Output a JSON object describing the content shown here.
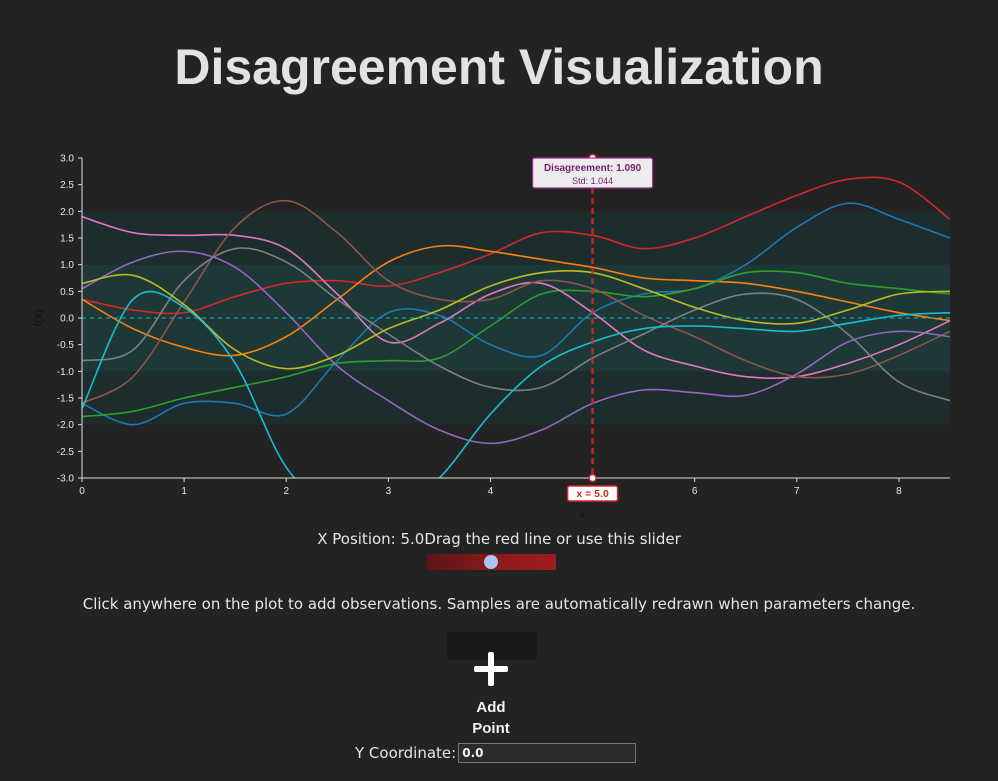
{
  "page": {
    "title": "Disagreement Visualization"
  },
  "controls": {
    "x_position_label": "X Position: 5.0",
    "slider_hint": "Drag the red line or use this slider",
    "slider_value": 5.0,
    "slider_min": 0,
    "slider_max": 8.5,
    "instructions": "Click anywhere on the plot to add observations. Samples are automatically redrawn when parameters change.",
    "add_button_label": "Add Point",
    "y_label": "Y Coordinate:",
    "y_value": "0.0"
  },
  "colors": {
    "accent": "#d62728",
    "tooltip_text": "#7a1e73",
    "band": "#1f3b3b",
    "slider_thumb": "#a9c6ee"
  },
  "chart_data": {
    "type": "line",
    "xlabel": "x",
    "ylabel": "f(x)",
    "xlim": [
      0,
      8.5
    ],
    "ylim": [
      -3,
      3
    ],
    "x_ticks": [
      "0",
      "1",
      "2",
      "3",
      "4",
      "5",
      "6",
      "7",
      "8"
    ],
    "y_ticks": [
      "3.0",
      "2.5",
      "2.0",
      "1.5",
      "1.0",
      "0.5",
      "0.0",
      "-0.5",
      "-1.0",
      "-1.5",
      "-2.0",
      "-2.5",
      "-3.0"
    ],
    "bands": [
      {
        "from": -2,
        "to": 2
      },
      {
        "from": -1,
        "to": 1
      }
    ],
    "mean_line": 0,
    "vertical_marker": {
      "x": 5.0,
      "label": "x = 5.0"
    },
    "tooltip": {
      "title": "Disagreement: 1.090",
      "subtitle": "Std: 1.044"
    },
    "series": [
      {
        "color": "#d62728",
        "x": [
          0,
          0.5,
          1,
          1.5,
          2,
          2.5,
          3,
          3.5,
          4,
          4.5,
          5,
          5.5,
          6,
          6.5,
          7,
          7.5,
          8,
          8.5
        ],
        "y": [
          0.35,
          0.15,
          0.1,
          0.4,
          0.65,
          0.7,
          0.6,
          0.85,
          1.2,
          1.6,
          1.55,
          1.3,
          1.5,
          1.9,
          2.3,
          2.6,
          2.55,
          1.85
        ]
      },
      {
        "color": "#1f77b4",
        "x": [
          0,
          0.5,
          1,
          1.5,
          2,
          2.5,
          3,
          3.5,
          4,
          4.5,
          5,
          5.5,
          6,
          6.5,
          7,
          7.5,
          8,
          8.5
        ],
        "y": [
          -1.6,
          -2.0,
          -1.6,
          -1.6,
          -1.8,
          -0.8,
          0.1,
          0.05,
          -0.5,
          -0.7,
          0.1,
          0.45,
          0.55,
          1.0,
          1.7,
          2.15,
          1.85,
          1.5
        ]
      },
      {
        "color": "#ff7f0e",
        "x": [
          0,
          0.5,
          1,
          1.5,
          2,
          2.5,
          3,
          3.5,
          4,
          4.5,
          5,
          5.5,
          6,
          6.5,
          7,
          7.5,
          8,
          8.5
        ],
        "y": [
          0.35,
          -0.2,
          -0.55,
          -0.7,
          -0.35,
          0.35,
          1.05,
          1.35,
          1.25,
          1.1,
          0.95,
          0.75,
          0.7,
          0.65,
          0.5,
          0.3,
          0.1,
          -0.05
        ]
      },
      {
        "color": "#2ca02c",
        "x": [
          0,
          0.5,
          1,
          1.5,
          2,
          2.5,
          3,
          3.5,
          4,
          4.5,
          5,
          5.5,
          6,
          6.5,
          7,
          7.5,
          8,
          8.5
        ],
        "y": [
          -1.85,
          -1.75,
          -1.5,
          -1.3,
          -1.1,
          -0.85,
          -0.8,
          -0.75,
          -0.15,
          0.45,
          0.5,
          0.4,
          0.55,
          0.85,
          0.85,
          0.65,
          0.55,
          0.45
        ]
      },
      {
        "color": "#e377c2",
        "x": [
          0,
          0.5,
          1,
          1.5,
          2,
          2.5,
          3,
          3.5,
          4,
          4.5,
          5,
          5.5,
          6,
          6.5,
          7,
          7.5,
          8,
          8.5
        ],
        "y": [
          1.9,
          1.6,
          1.55,
          1.55,
          1.3,
          0.45,
          -0.45,
          -0.1,
          0.45,
          0.65,
          0.1,
          -0.6,
          -0.9,
          -1.1,
          -1.1,
          -0.85,
          -0.5,
          -0.05
        ]
      },
      {
        "color": "#8c564b",
        "x": [
          0,
          0.5,
          1,
          1.5,
          2,
          2.5,
          3,
          3.5,
          4,
          4.5,
          5,
          5.5,
          6,
          6.5,
          7,
          7.5,
          8,
          8.5
        ],
        "y": [
          -1.6,
          -1.1,
          0.3,
          1.7,
          2.2,
          1.6,
          0.7,
          0.35,
          0.35,
          0.7,
          0.55,
          0.05,
          -0.35,
          -0.8,
          -1.1,
          -1.05,
          -0.7,
          -0.25
        ]
      },
      {
        "color": "#7f7f7f",
        "x": [
          0,
          0.5,
          1,
          1.5,
          2,
          2.5,
          3,
          3.5,
          4,
          4.5,
          5,
          5.5,
          6,
          6.5,
          7,
          7.5,
          8,
          8.5
        ],
        "y": [
          -0.8,
          -0.6,
          0.7,
          1.3,
          1.05,
          0.35,
          -0.3,
          -0.9,
          -1.3,
          -1.3,
          -0.75,
          -0.3,
          0.15,
          0.45,
          0.35,
          -0.3,
          -1.2,
          -1.55
        ]
      },
      {
        "color": "#9467bd",
        "x": [
          0,
          0.5,
          1,
          1.5,
          2,
          2.5,
          3,
          3.5,
          4,
          4.5,
          5,
          5.5,
          6,
          6.5,
          7,
          7.5,
          8,
          8.5
        ],
        "y": [
          0.55,
          1.05,
          1.25,
          0.95,
          0.1,
          -0.9,
          -1.55,
          -2.1,
          -2.35,
          -2.1,
          -1.6,
          -1.35,
          -1.4,
          -1.45,
          -1.05,
          -0.45,
          -0.25,
          -0.35
        ]
      },
      {
        "color": "#bcbd22",
        "x": [
          0,
          0.5,
          1,
          1.5,
          2,
          2.5,
          3,
          3.5,
          4,
          4.5,
          5,
          5.5,
          6,
          6.5,
          7,
          7.5,
          8,
          8.5
        ],
        "y": [
          0.65,
          0.8,
          0.25,
          -0.6,
          -0.95,
          -0.7,
          -0.2,
          0.15,
          0.6,
          0.85,
          0.85,
          0.55,
          0.2,
          -0.05,
          -0.1,
          0.15,
          0.45,
          0.5
        ]
      },
      {
        "color": "#17becf",
        "x": [
          0,
          0.5,
          1,
          1.5,
          2,
          2.5,
          3,
          3.5,
          4,
          4.5,
          5,
          5.5,
          6,
          6.5,
          7,
          7.5,
          8,
          8.5
        ],
        "y": [
          -1.7,
          0.35,
          0.2,
          -0.85,
          -2.8,
          -3.6,
          -3.7,
          -3.0,
          -1.8,
          -0.9,
          -0.45,
          -0.2,
          -0.15,
          -0.2,
          -0.25,
          -0.1,
          0.05,
          0.1
        ]
      }
    ]
  }
}
